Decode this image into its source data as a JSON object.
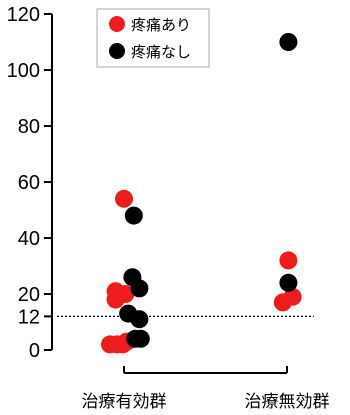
{
  "chart_data": {
    "type": "scatter",
    "title": "",
    "xlabel": "",
    "ylabel": "",
    "categories": [
      "治療有効群",
      "治療無効群"
    ],
    "y_ticks": [
      0,
      12,
      20,
      40,
      60,
      80,
      100,
      120
    ],
    "ylim": [
      0,
      120
    ],
    "reference_line": {
      "y": 12,
      "style": "dotted"
    },
    "legend": {
      "position": "top-left"
    },
    "series": [
      {
        "name": "疼痛あり",
        "color": "#ee1c1c",
        "points": [
          {
            "category": "治療有効群",
            "y": 54,
            "jitter": 0
          },
          {
            "category": "治療有効群",
            "y": 21,
            "jitter": -0.6
          },
          {
            "category": "治療有効群",
            "y": 20,
            "jitter": 0.1
          },
          {
            "category": "治療有効群",
            "y": 18,
            "jitter": -0.6
          },
          {
            "category": "治療有効群",
            "y": 3,
            "jitter": 0.2
          },
          {
            "category": "治療有効群",
            "y": 2,
            "jitter": -1.0
          },
          {
            "category": "治療有効群",
            "y": 2,
            "jitter": -0.5
          },
          {
            "category": "治療有効群",
            "y": 2,
            "jitter": -0.1
          },
          {
            "category": "治療無効群",
            "y": 32,
            "jitter": 0.1
          },
          {
            "category": "治療無効群",
            "y": 19,
            "jitter": 0.4
          },
          {
            "category": "治療無効群",
            "y": 17,
            "jitter": -0.3
          }
        ]
      },
      {
        "name": "疼痛なし",
        "color": "#000000",
        "points": [
          {
            "category": "治療有効群",
            "y": 48,
            "jitter": 0.7
          },
          {
            "category": "治療有効群",
            "y": 26,
            "jitter": 0.6
          },
          {
            "category": "治療有効群",
            "y": 22,
            "jitter": 1.1
          },
          {
            "category": "治療有効群",
            "y": 13,
            "jitter": 0.3
          },
          {
            "category": "治療有効群",
            "y": 11,
            "jitter": 1.1
          },
          {
            "category": "治療有効群",
            "y": 4,
            "jitter": 0.8
          },
          {
            "category": "治療有効群",
            "y": 4,
            "jitter": 1.2
          },
          {
            "category": "治療無効群",
            "y": 110,
            "jitter": 0.1
          },
          {
            "category": "治療無効群",
            "y": 24,
            "jitter": 0.1
          }
        ]
      }
    ]
  }
}
